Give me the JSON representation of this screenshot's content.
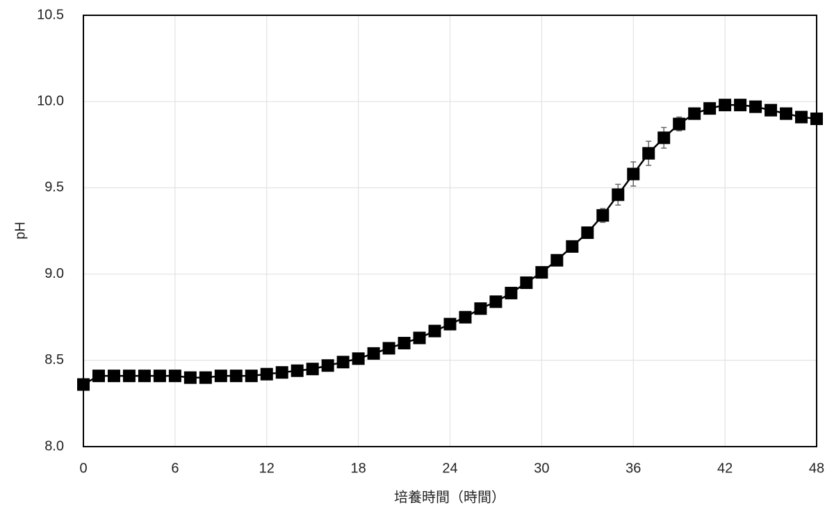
{
  "chart_data": {
    "type": "line",
    "x_label": "培養時間（時間）",
    "y_label": "pH",
    "x": [
      0,
      1,
      2,
      3,
      4,
      5,
      6,
      7,
      8,
      9,
      10,
      11,
      12,
      13,
      14,
      15,
      16,
      17,
      18,
      19,
      20,
      21,
      22,
      23,
      24,
      25,
      26,
      27,
      28,
      29,
      30,
      31,
      32,
      33,
      34,
      35,
      36,
      37,
      38,
      39,
      40,
      41,
      42,
      43,
      44,
      45,
      46,
      47,
      48
    ],
    "series": [
      {
        "color": "#000000",
        "values": [
          8.36,
          8.41,
          8.41,
          8.41,
          8.41,
          8.41,
          8.41,
          8.4,
          8.4,
          8.41,
          8.41,
          8.41,
          8.42,
          8.43,
          8.44,
          8.45,
          8.47,
          8.49,
          8.51,
          8.54,
          8.57,
          8.6,
          8.63,
          8.67,
          8.71,
          8.75,
          8.8,
          8.84,
          8.89,
          8.95,
          9.01,
          9.08,
          9.16,
          9.24,
          9.34,
          9.46,
          9.58,
          9.7,
          9.79,
          9.87,
          9.93,
          9.96,
          9.98,
          9.98,
          9.97,
          9.95,
          9.93,
          9.91,
          9.9
        ],
        "errors": [
          0.01,
          0.01,
          0.01,
          0.01,
          0.01,
          0.01,
          0.01,
          0.01,
          0.01,
          0.01,
          0.01,
          0.01,
          0.01,
          0.01,
          0.01,
          0.01,
          0.01,
          0.01,
          0.01,
          0.01,
          0.01,
          0.01,
          0.01,
          0.01,
          0.01,
          0.01,
          0.01,
          0.01,
          0.01,
          0.01,
          0.01,
          0.01,
          0.02,
          0.02,
          0.04,
          0.06,
          0.07,
          0.07,
          0.06,
          0.04,
          0.02,
          0.01,
          0.01,
          0.01,
          0.01,
          0.01,
          0.01,
          0.01,
          0.01
        ]
      }
    ],
    "xlim": [
      0,
      48
    ],
    "xticks": [
      0,
      6,
      12,
      18,
      24,
      30,
      36,
      42,
      48
    ],
    "ylim": [
      8.0,
      10.5
    ],
    "yticks": [
      {
        "value": 8,
        "label": "8.0"
      },
      8.5,
      {
        "value": 9,
        "label": "9.0"
      },
      9.5,
      {
        "value": 10,
        "label": "10.0"
      },
      10.5
    ],
    "grid": true
  }
}
